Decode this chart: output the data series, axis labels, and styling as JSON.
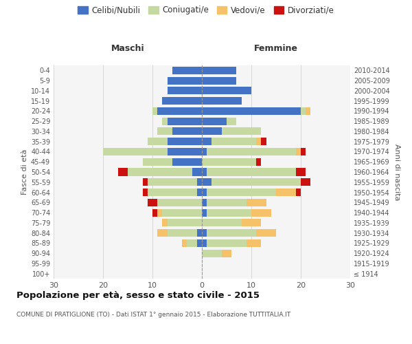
{
  "age_groups": [
    "100+",
    "95-99",
    "90-94",
    "85-89",
    "80-84",
    "75-79",
    "70-74",
    "65-69",
    "60-64",
    "55-59",
    "50-54",
    "45-49",
    "40-44",
    "35-39",
    "30-34",
    "25-29",
    "20-24",
    "15-19",
    "10-14",
    "5-9",
    "0-4"
  ],
  "birth_years": [
    "≤ 1914",
    "1915-1919",
    "1920-1924",
    "1925-1929",
    "1930-1934",
    "1935-1939",
    "1940-1944",
    "1945-1949",
    "1950-1954",
    "1955-1959",
    "1960-1964",
    "1965-1969",
    "1970-1974",
    "1975-1979",
    "1980-1984",
    "1985-1989",
    "1990-1994",
    "1995-1999",
    "2000-2004",
    "2005-2009",
    "2010-2014"
  ],
  "colors": {
    "celibi": "#4472C4",
    "coniugati": "#C5D9A0",
    "vedovi": "#F5C269",
    "divorziati": "#CC1111"
  },
  "maschi": {
    "celibi": [
      0,
      0,
      0,
      1,
      1,
      0,
      0,
      0,
      1,
      1,
      2,
      6,
      7,
      7,
      6,
      7,
      9,
      8,
      7,
      7,
      6
    ],
    "coniugati": [
      0,
      0,
      0,
      2,
      6,
      7,
      8,
      9,
      10,
      10,
      13,
      6,
      13,
      4,
      3,
      1,
      1,
      0,
      0,
      0,
      0
    ],
    "vedovi": [
      0,
      0,
      0,
      1,
      2,
      1,
      1,
      0,
      0,
      0,
      0,
      0,
      0,
      0,
      0,
      0,
      0,
      0,
      0,
      0,
      0
    ],
    "divorziati": [
      0,
      0,
      0,
      0,
      0,
      0,
      1,
      2,
      1,
      1,
      2,
      0,
      0,
      0,
      0,
      0,
      0,
      0,
      0,
      0,
      0
    ]
  },
  "femmine": {
    "celibi": [
      0,
      0,
      0,
      1,
      1,
      0,
      1,
      1,
      1,
      2,
      1,
      0,
      1,
      2,
      4,
      5,
      20,
      8,
      10,
      7,
      7
    ],
    "coniugati": [
      0,
      0,
      4,
      8,
      10,
      8,
      9,
      8,
      14,
      18,
      18,
      11,
      18,
      9,
      8,
      2,
      1,
      0,
      0,
      0,
      0
    ],
    "vedovi": [
      0,
      0,
      2,
      3,
      4,
      4,
      4,
      4,
      4,
      0,
      0,
      0,
      1,
      1,
      0,
      0,
      1,
      0,
      0,
      0,
      0
    ],
    "divorziati": [
      0,
      0,
      0,
      0,
      0,
      0,
      0,
      0,
      1,
      2,
      2,
      1,
      1,
      1,
      0,
      0,
      0,
      0,
      0,
      0,
      0
    ]
  },
  "title": "Popolazione per età, sesso e stato civile - 2015",
  "subtitle": "COMUNE DI PRATIGLIONE (TO) - Dati ISTAT 1° gennaio 2015 - Elaborazione TUTTITALIA.IT",
  "maschi_label": "Maschi",
  "femmine_label": "Femmine",
  "ylabel_left": "Fasce di età",
  "ylabel_right": "Anni di nascita",
  "xlim": 30,
  "legend_labels": [
    "Celibi/Nubili",
    "Coniugati/e",
    "Vedovi/e",
    "Divorziati/e"
  ],
  "bg_color": "#f5f5f5",
  "grid_color": "#cccccc"
}
